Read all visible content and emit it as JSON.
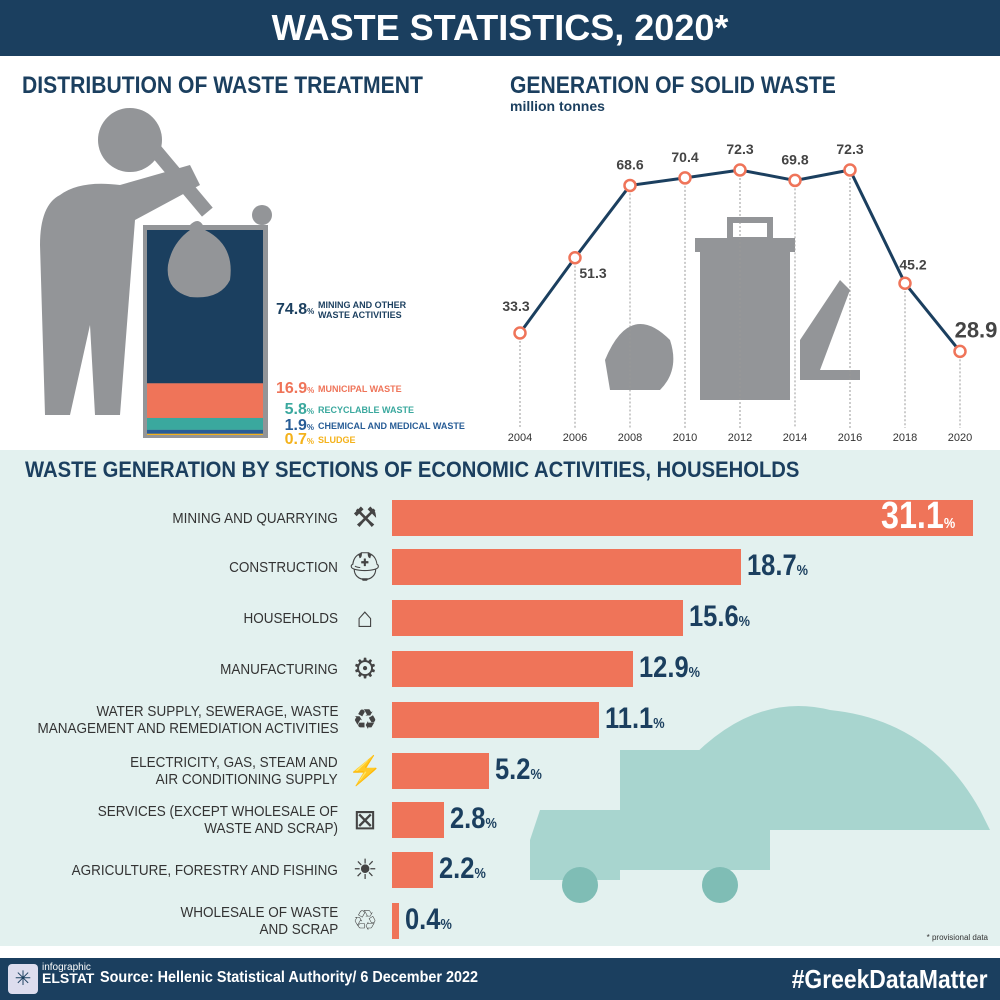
{
  "title": "WASTE STATISTICS, 2020*",
  "treatment": {
    "title": "DISTRIBUTION OF WASTE TREATMENT",
    "items": [
      {
        "value": "74.8",
        "label": "MINING AND OTHER WASTE ACTIVITIES",
        "color": "#1b3f5f"
      },
      {
        "value": "16.9",
        "label": "MUNICIPAL WASTE",
        "color": "#ef7459"
      },
      {
        "value": "5.8",
        "label": "RECYCLABLE WASTE",
        "color": "#3aa89e"
      },
      {
        "value": "1.9",
        "label": "CHEMICAL AND MEDICAL WASTE",
        "color": "#275c96"
      },
      {
        "value": "0.7",
        "label": "SLUDGE",
        "color": "#f4b21b"
      }
    ],
    "pct": "%"
  },
  "generation": {
    "title": "GENERATION OF SOLID WASTE",
    "subtitle": "million tonnes"
  },
  "sections": {
    "title": "WASTE GENERATION BY SECTIONS OF ECONOMIC ACTIVITIES, HOUSEHOLDS",
    "note": "* provisional data"
  },
  "footer": {
    "logo_top": "infographic",
    "logo_bottom": "ELSTAT",
    "source": "Source: Hellenic Statistical Authority/ 6 December 2022",
    "hashtag": "#GreekDataMatter"
  },
  "chart_data": [
    {
      "type": "pie",
      "title": "DISTRIBUTION OF WASTE TREATMENT",
      "categories": [
        "MINING AND OTHER WASTE ACTIVITIES",
        "MUNICIPAL WASTE",
        "RECYCLABLE WASTE",
        "CHEMICAL AND MEDICAL WASTE",
        "SLUDGE"
      ],
      "values": [
        74.8,
        16.9,
        5.8,
        1.9,
        0.7
      ]
    },
    {
      "type": "line",
      "title": "GENERATION OF SOLID WASTE",
      "ylabel": "million tonnes",
      "x": [
        2004,
        2006,
        2008,
        2010,
        2012,
        2014,
        2016,
        2018,
        2020
      ],
      "values": [
        33.3,
        51.3,
        68.6,
        70.4,
        72.3,
        69.8,
        72.3,
        45.2,
        28.9
      ],
      "labels": [
        "33.3",
        "51.3",
        "68.6",
        "70.4",
        "72.3",
        "69.8",
        "72.3",
        "45.2",
        "28.9"
      ],
      "color": "#1b3f5f",
      "marker_color": "#ef7459"
    },
    {
      "type": "bar",
      "orientation": "horizontal",
      "title": "WASTE GENERATION BY SECTIONS OF ECONOMIC ACTIVITIES, HOUSEHOLDS",
      "categories": [
        "MINING AND QUARRYING",
        "CONSTRUCTION",
        "HOUSEHOLDS",
        "MANUFACTURING",
        "WATER SUPPLY, SEWERAGE, WASTE MANAGEMENT AND REMEDIATION ACTIVITIES",
        "ELECTRICITY, GAS, STEAM AND AIR CONDITIONING SUPPLY",
        "SERVICES (EXCEPT WHOLESALE OF WASTE AND SCRAP)",
        "AGRICULTURE, FORESTRY AND FISHING",
        "WHOLESALE OF WASTE AND SCRAP"
      ],
      "lines": [
        [
          "MINING AND QUARRYING"
        ],
        [
          "CONSTRUCTION"
        ],
        [
          "HOUSEHOLDS"
        ],
        [
          "MANUFACTURING"
        ],
        [
          "WATER SUPPLY, SEWERAGE, WASTE",
          "MANAGEMENT AND REMEDIATION ACTIVITIES"
        ],
        [
          "ELECTRICITY, GAS, STEAM AND",
          "AIR CONDITIONING SUPPLY"
        ],
        [
          "SERVICES (EXCEPT WHOLESALE OF",
          "WASTE AND SCRAP)"
        ],
        [
          "AGRICULTURE, FORESTRY AND FISHING"
        ],
        [
          "WHOLESALE OF WASTE",
          "AND SCRAP"
        ]
      ],
      "values": [
        31.1,
        18.7,
        15.6,
        12.9,
        11.1,
        5.2,
        2.8,
        2.2,
        0.4
      ],
      "labels": [
        "31.1",
        "18.7",
        "15.6",
        "12.9",
        "11.1",
        "5.2",
        "2.8",
        "2.2",
        "0.4"
      ],
      "icons": [
        "pickaxe-icon",
        "hardhat-wrench-icon",
        "house-family-icon",
        "gears-icon",
        "bin-gear-icon",
        "factory-icon",
        "crossed-bin-icon",
        "plant-sun-icon",
        "bin-recycle-icon"
      ],
      "unit": "%",
      "color": "#ef7459"
    }
  ]
}
